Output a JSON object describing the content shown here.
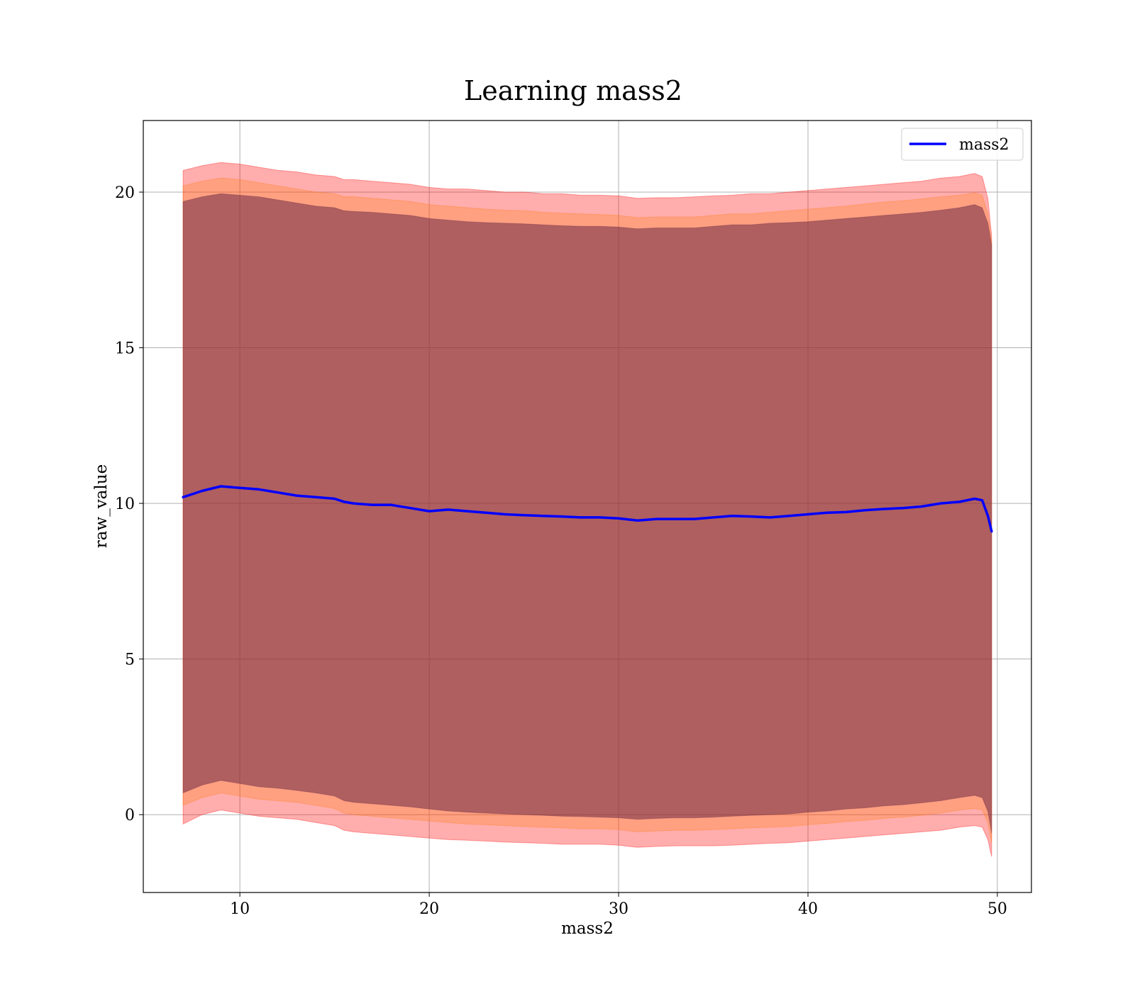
{
  "chart_data": {
    "type": "area",
    "title": "Learning mass2",
    "xlabel": "mass2",
    "ylabel": "raw_value",
    "xlim": [
      4.9,
      51.8
    ],
    "ylim": [
      -2.5,
      22.3
    ],
    "x_ticks": [
      "10",
      "20",
      "30",
      "40",
      "50"
    ],
    "y_ticks": [
      "0",
      "5",
      "10",
      "15",
      "20"
    ],
    "x_tick_values": [
      10,
      20,
      30,
      40,
      50
    ],
    "y_tick_values": [
      0,
      5,
      10,
      15,
      20
    ],
    "grid": true,
    "legend_position": "top-right",
    "legend": [
      {
        "label": "mass2",
        "color": "#0000ff"
      }
    ],
    "x": [
      7.0,
      8.0,
      9.0,
      10.0,
      11.0,
      12.0,
      13.0,
      14.0,
      15.0,
      15.5,
      16.0,
      17.0,
      18.0,
      19.0,
      20.0,
      21.0,
      22.0,
      23.0,
      24.0,
      25.0,
      26.0,
      27.0,
      28.0,
      29.0,
      30.0,
      31.0,
      32.0,
      33.0,
      34.0,
      35.0,
      36.0,
      37.0,
      38.0,
      39.0,
      40.0,
      41.0,
      42.0,
      43.0,
      44.0,
      45.0,
      46.0,
      47.0,
      48.0,
      48.8,
      49.2,
      49.5,
      49.7
    ],
    "series": [
      {
        "name": "mass2",
        "color": "#0000ff",
        "values": [
          10.2,
          10.4,
          10.55,
          10.5,
          10.45,
          10.35,
          10.25,
          10.2,
          10.15,
          10.05,
          10.0,
          9.95,
          9.95,
          9.85,
          9.75,
          9.8,
          9.75,
          9.7,
          9.65,
          9.62,
          9.6,
          9.58,
          9.55,
          9.55,
          9.52,
          9.45,
          9.5,
          9.5,
          9.5,
          9.55,
          9.6,
          9.58,
          9.55,
          9.6,
          9.65,
          9.7,
          9.72,
          9.78,
          9.82,
          9.85,
          9.9,
          10.0,
          10.05,
          10.15,
          10.1,
          9.6,
          9.1
        ]
      }
    ],
    "bands": [
      {
        "color": "#ff0000",
        "opacity": 0.32,
        "upper": [
          20.7,
          20.85,
          20.95,
          20.9,
          20.8,
          20.7,
          20.65,
          20.55,
          20.5,
          20.4,
          20.4,
          20.35,
          20.3,
          20.25,
          20.15,
          20.1,
          20.1,
          20.05,
          20.0,
          20.0,
          19.95,
          19.95,
          19.9,
          19.9,
          19.88,
          19.8,
          19.82,
          19.82,
          19.85,
          19.88,
          19.9,
          19.95,
          19.95,
          20.0,
          20.05,
          20.1,
          20.15,
          20.2,
          20.25,
          20.3,
          20.35,
          20.45,
          20.5,
          20.6,
          20.5,
          19.8,
          18.6
        ],
        "lower": [
          -0.3,
          0.0,
          0.15,
          0.05,
          -0.05,
          -0.1,
          -0.15,
          -0.25,
          -0.35,
          -0.5,
          -0.55,
          -0.6,
          -0.65,
          -0.7,
          -0.75,
          -0.8,
          -0.82,
          -0.85,
          -0.88,
          -0.9,
          -0.92,
          -0.95,
          -0.95,
          -0.95,
          -0.98,
          -1.05,
          -1.02,
          -1.0,
          -1.0,
          -1.0,
          -0.98,
          -0.95,
          -0.92,
          -0.9,
          -0.85,
          -0.8,
          -0.75,
          -0.7,
          -0.65,
          -0.6,
          -0.55,
          -0.5,
          -0.4,
          -0.35,
          -0.4,
          -0.8,
          -1.35
        ]
      },
      {
        "color": "#ff7f0e",
        "opacity": 0.28,
        "upper": [
          20.2,
          20.35,
          20.45,
          20.4,
          20.3,
          20.2,
          20.1,
          20.0,
          19.95,
          19.85,
          19.85,
          19.8,
          19.75,
          19.7,
          19.6,
          19.55,
          19.5,
          19.45,
          19.42,
          19.4,
          19.35,
          19.32,
          19.3,
          19.28,
          19.25,
          19.18,
          19.2,
          19.2,
          19.2,
          19.25,
          19.3,
          19.3,
          19.35,
          19.4,
          19.45,
          19.5,
          19.55,
          19.62,
          19.68,
          19.72,
          19.78,
          19.85,
          19.9,
          19.98,
          19.9,
          19.3,
          18.4
        ],
        "lower": [
          0.3,
          0.55,
          0.7,
          0.6,
          0.5,
          0.45,
          0.4,
          0.3,
          0.2,
          0.05,
          0.0,
          -0.05,
          -0.1,
          -0.15,
          -0.2,
          -0.25,
          -0.3,
          -0.32,
          -0.35,
          -0.38,
          -0.4,
          -0.42,
          -0.45,
          -0.45,
          -0.48,
          -0.55,
          -0.52,
          -0.5,
          -0.5,
          -0.48,
          -0.45,
          -0.42,
          -0.4,
          -0.38,
          -0.32,
          -0.28,
          -0.22,
          -0.18,
          -0.12,
          -0.08,
          -0.02,
          0.05,
          0.15,
          0.2,
          0.15,
          -0.25,
          -0.9
        ]
      },
      {
        "color": "#6e2a45",
        "opacity": 0.55,
        "upper": [
          19.7,
          19.85,
          19.95,
          19.9,
          19.85,
          19.75,
          19.65,
          19.55,
          19.5,
          19.4,
          19.38,
          19.35,
          19.3,
          19.25,
          19.15,
          19.1,
          19.05,
          19.02,
          19.0,
          18.98,
          18.95,
          18.92,
          18.9,
          18.9,
          18.88,
          18.82,
          18.85,
          18.85,
          18.85,
          18.9,
          18.95,
          18.95,
          19.0,
          19.02,
          19.05,
          19.1,
          19.15,
          19.2,
          19.25,
          19.3,
          19.35,
          19.42,
          19.5,
          19.6,
          19.5,
          19.0,
          18.3
        ],
        "lower": [
          0.7,
          0.95,
          1.1,
          1.0,
          0.9,
          0.85,
          0.78,
          0.7,
          0.6,
          0.45,
          0.4,
          0.35,
          0.3,
          0.25,
          0.18,
          0.12,
          0.08,
          0.05,
          0.02,
          0.0,
          -0.02,
          -0.05,
          -0.06,
          -0.08,
          -0.1,
          -0.15,
          -0.12,
          -0.1,
          -0.1,
          -0.08,
          -0.05,
          -0.02,
          0.0,
          0.02,
          0.08,
          0.12,
          0.18,
          0.22,
          0.28,
          0.32,
          0.38,
          0.45,
          0.55,
          0.62,
          0.55,
          0.1,
          -0.6
        ]
      }
    ]
  }
}
